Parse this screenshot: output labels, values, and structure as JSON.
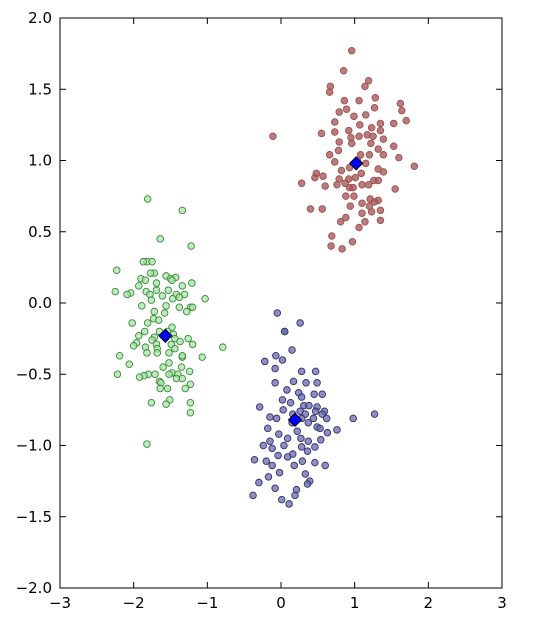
{
  "chart_data": {
    "type": "scatter",
    "title": "",
    "xlabel": "",
    "ylabel": "",
    "xlim": [
      -3,
      3
    ],
    "ylim": [
      -2,
      2
    ],
    "grid": false,
    "xticks": [
      -3,
      -2,
      -1,
      0,
      1,
      2,
      3
    ],
    "yticks": [
      -2.0,
      -1.5,
      -1.0,
      -0.5,
      0.0,
      0.5,
      1.0,
      1.5,
      2.0
    ],
    "xtick_labels": [
      "−3",
      "−2",
      "−1",
      "0",
      "1",
      "2",
      "3"
    ],
    "ytick_labels": [
      "−2.0",
      "−1.5",
      "−1.0",
      "−0.5",
      "0.0",
      "0.5",
      "1.0",
      "1.5",
      "2.0"
    ],
    "series": [
      {
        "color": "#a05050",
        "fill": "#a05050",
        "points": [
          [
            0.96,
            1.77
          ],
          [
            0.85,
            1.63
          ],
          [
            1.19,
            1.56
          ],
          [
            1.14,
            1.52
          ],
          [
            0.67,
            1.52
          ],
          [
            0.66,
            1.48
          ],
          [
            1.28,
            1.44
          ],
          [
            0.86,
            1.42
          ],
          [
            1.06,
            1.42
          ],
          [
            1.27,
            1.37
          ],
          [
            1.62,
            1.4
          ],
          [
            0.89,
            1.36
          ],
          [
            0.79,
            1.34
          ],
          [
            1.64,
            1.35
          ],
          [
            1.15,
            1.32
          ],
          [
            0.99,
            1.31
          ],
          [
            1.53,
            1.26
          ],
          [
            1.7,
            1.28
          ],
          [
            1.35,
            1.26
          ],
          [
            0.73,
            1.27
          ],
          [
            1.07,
            1.25
          ],
          [
            1.23,
            1.23
          ],
          [
            0.92,
            1.21
          ],
          [
            1.35,
            1.21
          ],
          [
            0.73,
            1.2
          ],
          [
            1.17,
            1.18
          ],
          [
            1.25,
            1.17
          ],
          [
            0.55,
            1.19
          ],
          [
            1.06,
            1.17
          ],
          [
            0.95,
            1.16
          ],
          [
            1.39,
            1.15
          ],
          [
            -0.11,
            1.17
          ],
          [
            0.79,
            1.13
          ],
          [
            0.96,
            1.12
          ],
          [
            1.22,
            1.12
          ],
          [
            1.53,
            1.1
          ],
          [
            1.32,
            1.08
          ],
          [
            0.78,
            1.07
          ],
          [
            1.08,
            1.04
          ],
          [
            1.2,
            1.04
          ],
          [
            1.39,
            1.04
          ],
          [
            0.66,
            1.04
          ],
          [
            1.04,
            1.0
          ],
          [
            1.6,
            1.02
          ],
          [
            0.73,
            0.99
          ],
          [
            1.15,
            0.98
          ],
          [
            0.93,
            0.95
          ],
          [
            1.81,
            0.96
          ],
          [
            1.32,
            0.94
          ],
          [
            0.82,
            0.93
          ],
          [
            1.09,
            0.91
          ],
          [
            1.39,
            0.92
          ],
          [
            0.48,
            0.91
          ],
          [
            0.46,
            0.88
          ],
          [
            0.57,
            0.89
          ],
          [
            0.79,
            0.87
          ],
          [
            0.92,
            0.87
          ],
          [
            1.01,
            0.88
          ],
          [
            1.26,
            0.86
          ],
          [
            1.32,
            0.86
          ],
          [
            0.87,
            0.84
          ],
          [
            0.76,
            0.83
          ],
          [
            1.1,
            0.83
          ],
          [
            1.19,
            0.83
          ],
          [
            0.93,
            0.81
          ],
          [
            0.28,
            0.84
          ],
          [
            0.6,
            0.82
          ],
          [
            0.98,
            0.81
          ],
          [
            1.55,
            0.8
          ],
          [
            0.99,
            0.75
          ],
          [
            0.88,
            0.75
          ],
          [
            1.21,
            0.73
          ],
          [
            1.27,
            0.71
          ],
          [
            1.32,
            0.72
          ],
          [
            1.1,
            0.7
          ],
          [
            0.94,
            0.68
          ],
          [
            1.2,
            0.68
          ],
          [
            1.35,
            0.65
          ],
          [
            0.56,
            0.66
          ],
          [
            0.4,
            0.66
          ],
          [
            1.23,
            0.64
          ],
          [
            0.88,
            0.6
          ],
          [
            1.1,
            0.63
          ],
          [
            1.06,
            0.53
          ],
          [
            1.35,
            0.58
          ],
          [
            1.14,
            0.57
          ],
          [
            0.81,
            0.57
          ],
          [
            0.69,
            0.47
          ],
          [
            0.97,
            0.43
          ],
          [
            0.68,
            0.4
          ],
          [
            0.83,
            0.38
          ]
        ]
      },
      {
        "color": "#3a8a3a",
        "fill": "#a8e3a8",
        "points": [
          [
            -1.81,
            0.73
          ],
          [
            -1.34,
            0.65
          ],
          [
            -1.64,
            0.45
          ],
          [
            -1.22,
            0.4
          ],
          [
            -1.82,
            0.29
          ],
          [
            -1.87,
            0.29
          ],
          [
            -1.75,
            0.29
          ],
          [
            -2.23,
            0.23
          ],
          [
            -1.72,
            0.21
          ],
          [
            -1.77,
            0.21
          ],
          [
            -1.9,
            0.17
          ],
          [
            -1.56,
            0.19
          ],
          [
            -1.43,
            0.18
          ],
          [
            -1.5,
            0.17
          ],
          [
            -1.84,
            0.16
          ],
          [
            -1.48,
            0.16
          ],
          [
            -1.93,
            0.12
          ],
          [
            -1.21,
            0.14
          ],
          [
            -1.69,
            0.14
          ],
          [
            -1.69,
            0.09
          ],
          [
            -1.34,
            0.12
          ],
          [
            -1.53,
            0.09
          ],
          [
            -1.83,
            0.08
          ],
          [
            -2.04,
            0.07
          ],
          [
            -1.42,
            0.06
          ],
          [
            -2.09,
            0.06
          ],
          [
            -1.78,
            0.06
          ],
          [
            -1.61,
            0.05
          ],
          [
            -1.31,
            0.06
          ],
          [
            -1.38,
            0.04
          ],
          [
            -2.25,
            0.08
          ],
          [
            -1.47,
            0.03
          ],
          [
            -1.76,
            0.02
          ],
          [
            -1.03,
            0.03
          ],
          [
            -1.56,
            -0.02
          ],
          [
            -1.38,
            -0.03
          ],
          [
            -1.89,
            -0.02
          ],
          [
            -1.23,
            -0.03
          ],
          [
            -1.2,
            -0.03
          ],
          [
            -1.72,
            -0.06
          ],
          [
            -1.28,
            -0.06
          ],
          [
            -1.58,
            -0.07
          ],
          [
            -1.73,
            -0.11
          ],
          [
            -1.66,
            -0.12
          ],
          [
            -1.81,
            -0.14
          ],
          [
            -2.02,
            -0.14
          ],
          [
            -1.48,
            -0.17
          ],
          [
            -1.46,
            -0.22
          ],
          [
            -1.85,
            -0.2
          ],
          [
            -1.65,
            -0.2
          ],
          [
            -1.54,
            -0.2
          ],
          [
            -1.93,
            -0.23
          ],
          [
            -1.72,
            -0.24
          ],
          [
            -1.44,
            -0.25
          ],
          [
            -1.75,
            -0.26
          ],
          [
            -1.26,
            -0.25
          ],
          [
            -1.37,
            -0.27
          ],
          [
            -1.49,
            -0.29
          ],
          [
            -1.96,
            -0.28
          ],
          [
            -1.69,
            -0.29
          ],
          [
            -2.0,
            -0.3
          ],
          [
            -1.84,
            -0.31
          ],
          [
            -1.68,
            -0.32
          ],
          [
            -1.44,
            -0.32
          ],
          [
            -1.2,
            -0.29
          ],
          [
            -1.68,
            -0.35
          ],
          [
            -1.82,
            -0.35
          ],
          [
            -0.79,
            -0.31
          ],
          [
            -1.52,
            -0.35
          ],
          [
            -2.19,
            -0.37
          ],
          [
            -1.34,
            -0.38
          ],
          [
            -1.34,
            -0.37
          ],
          [
            -1.07,
            -0.38
          ],
          [
            -1.52,
            -0.42
          ],
          [
            -2.06,
            -0.43
          ],
          [
            -1.6,
            -0.45
          ],
          [
            -1.35,
            -0.45
          ],
          [
            -1.48,
            -0.49
          ],
          [
            -1.24,
            -0.48
          ],
          [
            -1.8,
            -0.5
          ],
          [
            -1.71,
            -0.5
          ],
          [
            -2.22,
            -0.5
          ],
          [
            -1.4,
            -0.5
          ],
          [
            -1.86,
            -0.51
          ],
          [
            -1.52,
            -0.5
          ],
          [
            -1.92,
            -0.52
          ],
          [
            -1.34,
            -0.53
          ],
          [
            -1.42,
            -0.53
          ],
          [
            -1.65,
            -0.55
          ],
          [
            -1.63,
            -0.56
          ],
          [
            -1.23,
            -0.57
          ],
          [
            -1.54,
            -0.6
          ],
          [
            -1.3,
            -0.6
          ],
          [
            -1.64,
            -0.6
          ],
          [
            -1.51,
            -0.68
          ],
          [
            -1.76,
            -0.7
          ],
          [
            -1.56,
            -0.71
          ],
          [
            -1.23,
            -0.7
          ],
          [
            -1.23,
            -0.77
          ],
          [
            -1.82,
            -0.99
          ]
        ]
      },
      {
        "color": "#30307a",
        "fill": "#6a6aa6",
        "points": [
          [
            -0.05,
            -0.07
          ],
          [
            0.26,
            -0.14
          ],
          [
            0.05,
            -0.2
          ],
          [
            0.05,
            -0.2
          ],
          [
            0.15,
            -0.33
          ],
          [
            -0.07,
            -0.37
          ],
          [
            0.02,
            -0.4
          ],
          [
            -0.22,
            -0.41
          ],
          [
            -0.08,
            -0.46
          ],
          [
            0.28,
            -0.48
          ],
          [
            0.47,
            -0.48
          ],
          [
            0.17,
            -0.55
          ],
          [
            -0.08,
            -0.56
          ],
          [
            0.34,
            -0.56
          ],
          [
            0.49,
            -0.56
          ],
          [
            0.08,
            -0.61
          ],
          [
            0.24,
            -0.63
          ],
          [
            0.45,
            -0.64
          ],
          [
            0.56,
            -0.64
          ],
          [
            0.28,
            -0.66
          ],
          [
            0.02,
            -0.68
          ],
          [
            0.13,
            -0.7
          ],
          [
            0.31,
            -0.72
          ],
          [
            0.38,
            -0.72
          ],
          [
            0.49,
            -0.73
          ],
          [
            -0.29,
            -0.73
          ],
          [
            0.03,
            -0.75
          ],
          [
            0.47,
            -0.76
          ],
          [
            0.59,
            -0.76
          ],
          [
            0.26,
            -0.76
          ],
          [
            0.16,
            -0.78
          ],
          [
            0.33,
            -0.78
          ],
          [
            0.56,
            -0.78
          ],
          [
            -0.15,
            -0.8
          ],
          [
            -0.06,
            -0.81
          ],
          [
            0.28,
            -0.81
          ],
          [
            0.44,
            -0.81
          ],
          [
            0.62,
            -0.81
          ],
          [
            0.98,
            -0.81
          ],
          [
            1.27,
            -0.78
          ],
          [
            0.15,
            -0.84
          ],
          [
            0.37,
            -0.84
          ],
          [
            0.49,
            -0.87
          ],
          [
            -0.18,
            -0.88
          ],
          [
            0.53,
            -0.88
          ],
          [
            0.22,
            -0.9
          ],
          [
            -0.03,
            -0.92
          ],
          [
            0.63,
            -0.91
          ],
          [
            0.76,
            -0.89
          ],
          [
            0.27,
            -0.95
          ],
          [
            -0.15,
            -0.97
          ],
          [
            0.09,
            -0.95
          ],
          [
            0.54,
            -0.96
          ],
          [
            0.37,
            -0.97
          ],
          [
            -0.24,
            -1.0
          ],
          [
            0.04,
            -1.0
          ],
          [
            -0.12,
            -1.02
          ],
          [
            0.28,
            -1.01
          ],
          [
            0.46,
            -1.01
          ],
          [
            0.36,
            -1.04
          ],
          [
            0.16,
            -1.06
          ],
          [
            -0.04,
            -1.07
          ],
          [
            0.09,
            -1.08
          ],
          [
            -0.36,
            -1.1
          ],
          [
            -0.2,
            -1.11
          ],
          [
            0.29,
            -1.11
          ],
          [
            0.46,
            -1.12
          ],
          [
            -0.12,
            -1.14
          ],
          [
            0.18,
            -1.14
          ],
          [
            0.6,
            -1.14
          ],
          [
            -0.02,
            -1.19
          ],
          [
            0.33,
            -1.2
          ],
          [
            -0.17,
            -1.22
          ],
          [
            0.39,
            -1.25
          ],
          [
            0.36,
            -1.27
          ],
          [
            -0.3,
            -1.26
          ],
          [
            -0.08,
            -1.3
          ],
          [
            0.21,
            -1.31
          ],
          [
            -0.38,
            -1.35
          ],
          [
            0.19,
            -1.35
          ],
          [
            0.01,
            -1.38
          ],
          [
            0.11,
            -1.41
          ]
        ]
      }
    ],
    "centers": [
      [
        1.02,
        0.98
      ],
      [
        -1.57,
        -0.23
      ],
      [
        0.19,
        -0.82
      ]
    ],
    "center_color": "#0000ff"
  }
}
